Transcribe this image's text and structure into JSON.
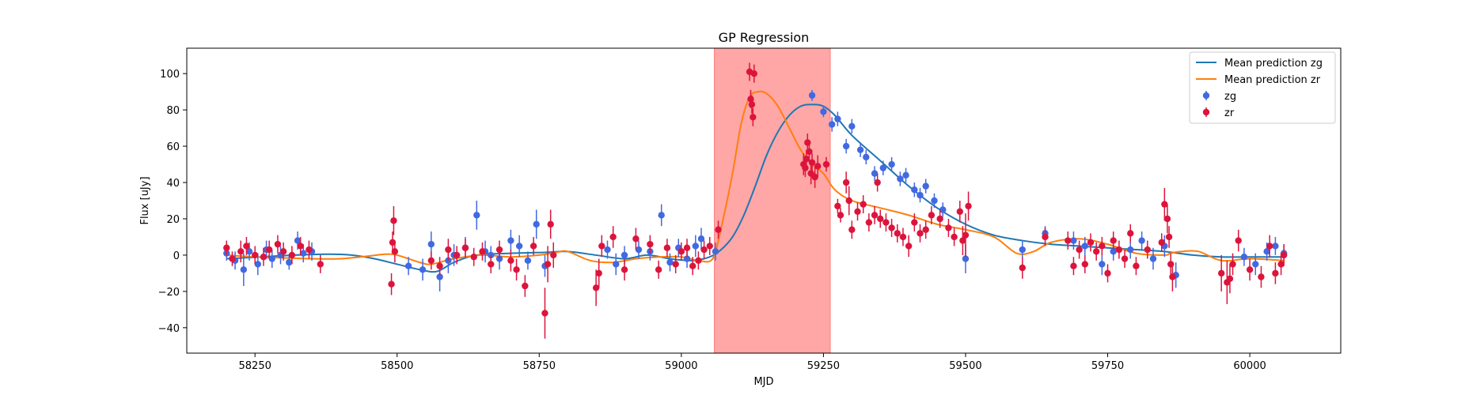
{
  "chart_data": {
    "type": "scatter",
    "title": "GP Regression",
    "xlabel": "MJD",
    "ylabel": "Flux [uJy]",
    "xlim": [
      58130,
      60160
    ],
    "ylim": [
      -54,
      114
    ],
    "xticks": [
      58250,
      58500,
      58750,
      59000,
      59250,
      59500,
      59750,
      60000
    ],
    "yticks": [
      -40,
      -20,
      0,
      20,
      40,
      60,
      80,
      100
    ],
    "grid": false,
    "legend_position": "top-right",
    "legend": [
      "Mean prediction zg",
      "Mean prediction zr",
      "zg",
      "zr"
    ],
    "shaded_region": {
      "x_start": 59058,
      "x_end": 59262,
      "color": "#ff8080"
    },
    "series": [
      {
        "name": "Mean prediction zg",
        "kind": "line",
        "color": "#1f77b4",
        "x": [
          58200,
          58260,
          58320,
          58380,
          58420,
          58460,
          58500,
          58540,
          58570,
          58600,
          58640,
          58700,
          58760,
          58800,
          58850,
          58900,
          58940,
          58980,
          59020,
          59050,
          59070,
          59090,
          59110,
          59130,
          59150,
          59170,
          59190,
          59210,
          59230,
          59250,
          59270,
          59300,
          59350,
          59400,
          59450,
          59500,
          59550,
          59600,
          59650,
          59700,
          59750,
          59800,
          59850,
          59900,
          59950,
          60000,
          60060
        ],
        "y": [
          -2,
          -1,
          0,
          0.5,
          0,
          -2,
          -5,
          -8,
          -9,
          -4,
          0,
          1,
          1.5,
          2,
          0,
          -2,
          0,
          -2,
          -3,
          -1,
          3,
          10,
          22,
          38,
          55,
          68,
          77,
          82,
          83,
          82,
          77,
          66,
          52,
          38,
          26,
          17,
          11,
          8,
          6,
          5,
          4,
          3,
          2,
          0,
          -1,
          -1,
          -1
        ]
      },
      {
        "name": "Mean prediction zr",
        "kind": "line",
        "color": "#ff7f0e",
        "x": [
          58200,
          58250,
          58300,
          58350,
          58400,
          58450,
          58480,
          58500,
          58540,
          58560,
          58600,
          58650,
          58700,
          58750,
          58780,
          58800,
          58840,
          58880,
          58920,
          58960,
          59000,
          59030,
          59055,
          59070,
          59090,
          59105,
          59120,
          59135,
          59150,
          59170,
          59190,
          59210,
          59230,
          59250,
          59270,
          59300,
          59350,
          59400,
          59450,
          59500,
          59550,
          59590,
          59620,
          59650,
          59700,
          59750,
          59800,
          59850,
          59860,
          59880,
          59910,
          59950,
          60000,
          60060
        ],
        "y": [
          0,
          -1,
          -1.5,
          -2,
          -2,
          -0.5,
          0.5,
          0,
          -4,
          -5,
          -2,
          0,
          -1,
          0,
          1.5,
          2,
          -3,
          -4,
          -2,
          -1,
          -1,
          -3,
          -2,
          15,
          45,
          72,
          87,
          90,
          89,
          82,
          70,
          58,
          50,
          45,
          36,
          30,
          26,
          22,
          17,
          14,
          10,
          1,
          2,
          7,
          9,
          6,
          1,
          0,
          1,
          2,
          2,
          -3,
          -2,
          -3
        ]
      },
      {
        "name": "zg",
        "kind": "errorbar",
        "color": "#4169e1",
        "x": [
          58200,
          58215,
          58230,
          58240,
          58255,
          58270,
          58280,
          58295,
          58310,
          58325,
          58335,
          58350,
          58520,
          58545,
          58560,
          58575,
          58590,
          58600,
          58620,
          58640,
          58655,
          58665,
          58680,
          58700,
          58715,
          58730,
          58745,
          58760,
          58870,
          58885,
          58900,
          58925,
          58945,
          58965,
          58980,
          58995,
          59010,
          59025,
          59035,
          59060,
          59230,
          59250,
          59265,
          59275,
          59290,
          59300,
          59315,
          59325,
          59340,
          59355,
          59370,
          59385,
          59395,
          59410,
          59420,
          59430,
          59445,
          59460,
          59500,
          59600,
          59640,
          59690,
          59710,
          59740,
          59760,
          59790,
          59810,
          59830,
          59850,
          59870,
          59990,
          60010,
          60030,
          60045,
          60060
        ],
        "y": [
          1,
          -3,
          -8,
          2,
          -5,
          3,
          -2,
          0,
          -4,
          8,
          1,
          2,
          -6,
          -8,
          6,
          -12,
          -3,
          0,
          4,
          22,
          2,
          0,
          -2,
          8,
          5,
          -3,
          17,
          -6,
          3,
          -5,
          0,
          3,
          2,
          22,
          -4,
          4,
          -2,
          5,
          9,
          2,
          88,
          79,
          72,
          75,
          60,
          71,
          58,
          54,
          45,
          48,
          50,
          42,
          44,
          36,
          33,
          38,
          30,
          25,
          -2,
          3,
          12,
          8,
          5,
          -5,
          2,
          3,
          8,
          -2,
          5,
          -11,
          -1,
          -5,
          2,
          5,
          1
        ],
        "yerr": [
          4,
          5,
          9,
          5,
          6,
          5,
          5,
          5,
          4,
          5,
          5,
          5,
          5,
          6,
          7,
          8,
          7,
          6,
          6,
          8,
          6,
          5,
          6,
          6,
          6,
          5,
          8,
          6,
          5,
          6,
          5,
          5,
          5,
          6,
          5,
          5,
          5,
          6,
          6,
          5,
          3,
          3,
          4,
          4,
          4,
          4,
          4,
          4,
          4,
          4,
          4,
          4,
          4,
          4,
          4,
          4,
          4,
          4,
          8,
          5,
          4,
          5,
          5,
          6,
          5,
          5,
          5,
          6,
          6,
          7,
          5,
          6,
          5,
          5,
          5
        ]
      },
      {
        "name": "zr",
        "kind": "errorbar",
        "color": "#dc143c",
        "x": [
          58200,
          58210,
          58225,
          58235,
          58250,
          58265,
          58275,
          58290,
          58300,
          58315,
          58330,
          58345,
          58365,
          58490,
          58492,
          58494,
          58496,
          58560,
          58575,
          58590,
          58605,
          58620,
          58635,
          58650,
          58665,
          58680,
          58700,
          58710,
          58725,
          58740,
          58760,
          58765,
          58770,
          58775,
          58850,
          58855,
          58860,
          58880,
          58900,
          58920,
          58945,
          58960,
          58975,
          58990,
          59000,
          59010,
          59020,
          59030,
          59040,
          59050,
          59065,
          59120,
          59122,
          59124,
          59126,
          59128,
          59215,
          59218,
          59220,
          59222,
          59225,
          59228,
          59230,
          59235,
          59240,
          59255,
          59275,
          59280,
          59290,
          59295,
          59300,
          59310,
          59320,
          59330,
          59340,
          59345,
          59350,
          59360,
          59370,
          59380,
          59390,
          59400,
          59410,
          59420,
          59430,
          59440,
          59455,
          59470,
          59480,
          59490,
          59495,
          59500,
          59505,
          59600,
          59640,
          59680,
          59690,
          59700,
          59710,
          59720,
          59730,
          59740,
          59750,
          59760,
          59770,
          59780,
          59790,
          59800,
          59820,
          59845,
          59850,
          59855,
          59858,
          59861,
          59864,
          59950,
          59960,
          59965,
          59970,
          59980,
          60000,
          60020,
          60035,
          60045,
          60055,
          60060
        ],
        "y": [
          4,
          -2,
          2,
          5,
          0,
          -1,
          3,
          6,
          2,
          0,
          5,
          3,
          -5,
          -16,
          7,
          19,
          2,
          -3,
          -6,
          3,
          0,
          4,
          -1,
          2,
          -5,
          3,
          -3,
          -8,
          -17,
          5,
          -32,
          -5,
          17,
          0,
          -18,
          -10,
          5,
          10,
          -8,
          9,
          6,
          -8,
          4,
          -5,
          2,
          4,
          -6,
          -3,
          3,
          5,
          14,
          101,
          86,
          83,
          76,
          100,
          50,
          48,
          53,
          62,
          57,
          45,
          51,
          43,
          49,
          50,
          27,
          22,
          40,
          30,
          14,
          24,
          28,
          18,
          22,
          40,
          20,
          18,
          15,
          12,
          10,
          5,
          18,
          12,
          14,
          22,
          20,
          15,
          10,
          24,
          8,
          11,
          27,
          -7,
          10,
          8,
          -6,
          3,
          -5,
          7,
          2,
          5,
          -10,
          8,
          3,
          -2,
          12,
          -6,
          3,
          7,
          28,
          20,
          10,
          -5,
          -12,
          -10,
          -15,
          -13,
          -5,
          8,
          -8,
          -12,
          5,
          -10,
          -5,
          0
        ],
        "yerr": [
          4,
          4,
          6,
          5,
          5,
          5,
          5,
          5,
          5,
          5,
          5,
          5,
          5,
          6,
          6,
          8,
          6,
          5,
          5,
          6,
          5,
          5,
          5,
          5,
          5,
          5,
          6,
          6,
          6,
          5,
          14,
          10,
          8,
          7,
          10,
          8,
          6,
          6,
          6,
          6,
          5,
          5,
          5,
          5,
          5,
          5,
          5,
          5,
          5,
          5,
          5,
          5,
          5,
          5,
          5,
          5,
          6,
          5,
          5,
          5,
          6,
          6,
          5,
          6,
          6,
          4,
          4,
          4,
          6,
          8,
          5,
          5,
          5,
          5,
          5,
          5,
          5,
          5,
          5,
          5,
          5,
          6,
          5,
          5,
          5,
          5,
          5,
          5,
          5,
          6,
          8,
          12,
          8,
          6,
          5,
          5,
          5,
          5,
          5,
          5,
          5,
          5,
          5,
          5,
          5,
          5,
          5,
          5,
          5,
          5,
          9,
          8,
          6,
          6,
          8,
          10,
          12,
          8,
          6,
          6,
          6,
          6,
          6,
          6,
          6,
          6
        ]
      }
    ]
  }
}
